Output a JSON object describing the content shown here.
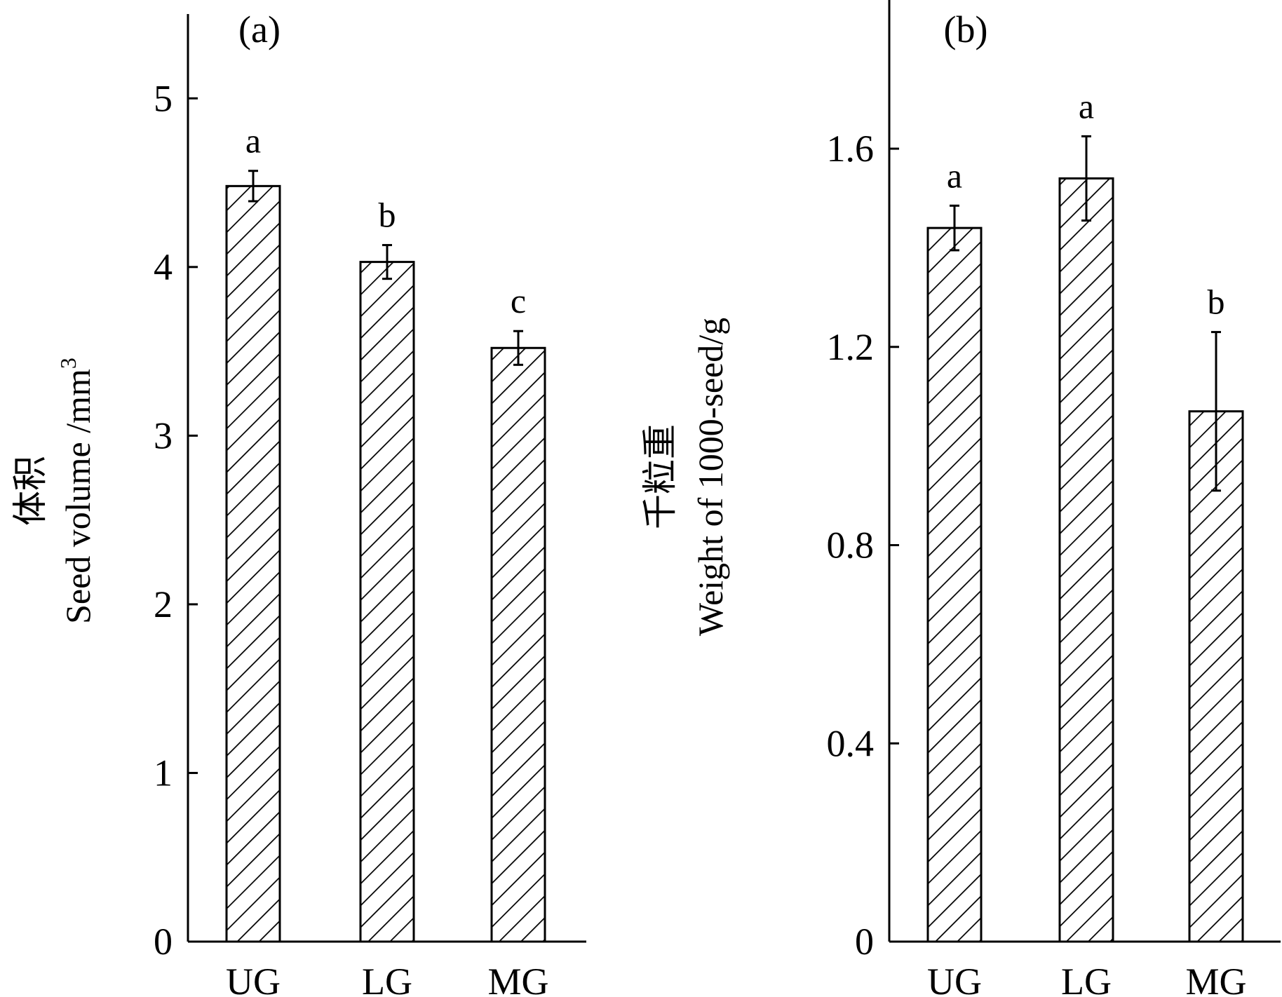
{
  "chart_data": [
    {
      "type": "bar",
      "panel": "(a)",
      "title": "",
      "categories": [
        "UG",
        "LG",
        "MG"
      ],
      "values": [
        4.48,
        4.03,
        3.52
      ],
      "errors": [
        0.09,
        0.1,
        0.1
      ],
      "significance": [
        "a",
        "b",
        "c"
      ],
      "ylabel_zh": "体积",
      "ylabel_en": "Seed volume /mm",
      "ylabel_sup": "3",
      "xlabel": "",
      "ylim": [
        0,
        5.5
      ],
      "yticks": [
        0,
        1,
        2,
        3,
        4,
        5
      ],
      "ytick_labels": [
        "0",
        "1",
        "2",
        "3",
        "4",
        "5"
      ],
      "fill": "hatched"
    },
    {
      "type": "bar",
      "panel": "(b)",
      "title": "",
      "categories": [
        "UG",
        "LG",
        "MG"
      ],
      "values": [
        1.44,
        1.54,
        1.07
      ],
      "errors": [
        0.045,
        0.085,
        0.16
      ],
      "significance": [
        "a",
        "a",
        "b"
      ],
      "ylabel_zh": "千粒重",
      "ylabel_en": "Weight of 1000-seed/g",
      "ylabel_sup": "",
      "xlabel": "",
      "ylim": [
        0,
        1.9
      ],
      "yticks": [
        0,
        0.4,
        0.8,
        1.2,
        1.6
      ],
      "ytick_labels": [
        "0",
        "0.4",
        "0.8",
        "1.2",
        "1.6"
      ],
      "fill": "hatched"
    }
  ]
}
